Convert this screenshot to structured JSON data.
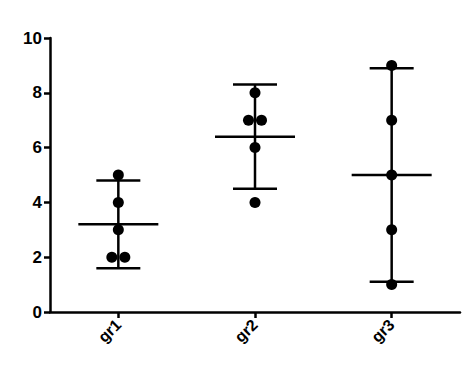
{
  "chart_data": {
    "type": "scatter",
    "categories": [
      "gr1",
      "gr2",
      "gr3"
    ],
    "values": [
      [
        2,
        2,
        3,
        4,
        5
      ],
      [
        4,
        6,
        7,
        7,
        8
      ],
      [
        1,
        3,
        5,
        7,
        9
      ]
    ],
    "mean": [
      3.2,
      6.4,
      5.0
    ],
    "error_low": [
      1.6,
      4.5,
      1.1
    ],
    "error_high": [
      4.8,
      8.3,
      8.9
    ],
    "color": "#000000",
    "marker": "circle",
    "ylim": [
      0,
      10
    ],
    "yticks": [
      0,
      2,
      4,
      6,
      8,
      10
    ],
    "grid": false
  }
}
